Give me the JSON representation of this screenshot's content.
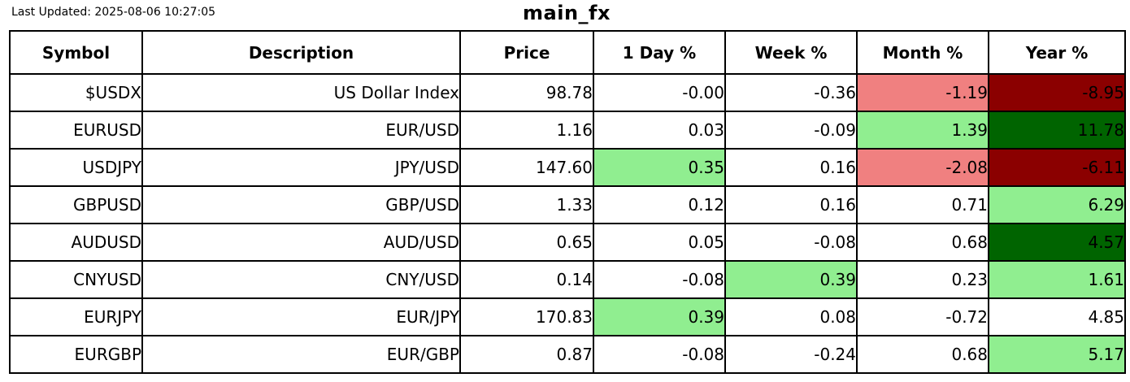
{
  "header": {
    "last_updated": "Last Updated: 2025-08-06 10:27:05",
    "title": "main_fx"
  },
  "colors": {
    "pos_light": "#90EE90",
    "pos_dark": "#006400",
    "neg_light": "#F08080",
    "neg_dark": "#8B0000",
    "border": "#000000",
    "cell_default": "#ffffff"
  },
  "table": {
    "columns": [
      "Symbol",
      "Description",
      "Price",
      "1 Day %",
      "Week %",
      "Month %",
      "Year %"
    ],
    "rows": [
      {
        "symbol": "$USDX",
        "description": "US Dollar Index",
        "price": "98.78",
        "day": "-0.00",
        "week": "-0.36",
        "month": "-1.19",
        "year": "-8.95",
        "bg": {
          "month": "neg_light",
          "year": "neg_dark"
        }
      },
      {
        "symbol": "EURUSD",
        "description": "EUR/USD",
        "price": "1.16",
        "day": "0.03",
        "week": "-0.09",
        "month": "1.39",
        "year": "11.78",
        "bg": {
          "month": "pos_light",
          "year": "pos_dark"
        }
      },
      {
        "symbol": "USDJPY",
        "description": "JPY/USD",
        "price": "147.60",
        "day": "0.35",
        "week": "0.16",
        "month": "-2.08",
        "year": "-6.11",
        "bg": {
          "day": "pos_light",
          "month": "neg_light",
          "year": "neg_dark"
        }
      },
      {
        "symbol": "GBPUSD",
        "description": "GBP/USD",
        "price": "1.33",
        "day": "0.12",
        "week": "0.16",
        "month": "0.71",
        "year": "6.29",
        "bg": {
          "year": "pos_light"
        }
      },
      {
        "symbol": "AUDUSD",
        "description": "AUD/USD",
        "price": "0.65",
        "day": "0.05",
        "week": "-0.08",
        "month": "0.68",
        "year": "4.57",
        "bg": {
          "year": "pos_dark"
        }
      },
      {
        "symbol": "CNYUSD",
        "description": "CNY/USD",
        "price": "0.14",
        "day": "-0.08",
        "week": "0.39",
        "month": "0.23",
        "year": "1.61",
        "bg": {
          "week": "pos_light",
          "year": "pos_light"
        }
      },
      {
        "symbol": "EURJPY",
        "description": "EUR/JPY",
        "price": "170.83",
        "day": "0.39",
        "week": "0.08",
        "month": "-0.72",
        "year": "4.85",
        "bg": {
          "day": "pos_light"
        }
      },
      {
        "symbol": "EURGBP",
        "description": "EUR/GBP",
        "price": "0.87",
        "day": "-0.08",
        "week": "-0.24",
        "month": "0.68",
        "year": "5.17",
        "bg": {
          "year": "pos_light"
        }
      }
    ]
  },
  "chart_data": {
    "type": "table",
    "title": "main_fx",
    "annotations": [
      "Last Updated: 2025-08-06 10:27:05"
    ],
    "columns": [
      "Symbol",
      "Description",
      "Price",
      "1 Day %",
      "Week %",
      "Month %",
      "Year %"
    ],
    "rows": [
      [
        "$USDX",
        "US Dollar Index",
        98.78,
        -0.0,
        -0.36,
        -1.19,
        -8.95
      ],
      [
        "EURUSD",
        "EUR/USD",
        1.16,
        0.03,
        -0.09,
        1.39,
        11.78
      ],
      [
        "USDJPY",
        "JPY/USD",
        147.6,
        0.35,
        0.16,
        -2.08,
        -6.11
      ],
      [
        "GBPUSD",
        "GBP/USD",
        1.33,
        0.12,
        0.16,
        0.71,
        6.29
      ],
      [
        "AUDUSD",
        "AUD/USD",
        0.65,
        0.05,
        -0.08,
        0.68,
        4.57
      ],
      [
        "CNYUSD",
        "CNY/USD",
        0.14,
        -0.08,
        0.39,
        0.23,
        1.61
      ],
      [
        "EURJPY",
        "EUR/JPY",
        170.83,
        0.39,
        0.08,
        -0.72,
        4.85
      ],
      [
        "EURGBP",
        "EUR/GBP",
        0.87,
        -0.08,
        -0.24,
        0.68,
        5.17
      ]
    ],
    "legend_position": "none",
    "grid": true
  }
}
